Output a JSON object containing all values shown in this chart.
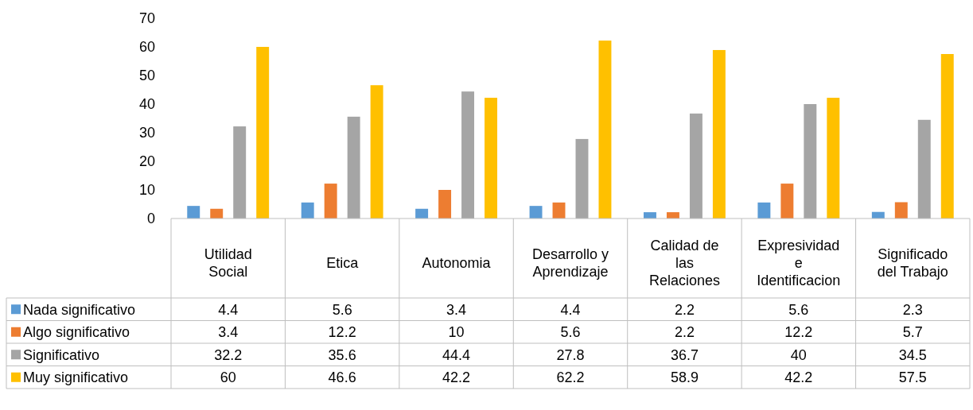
{
  "chart_data": {
    "type": "bar",
    "categories": [
      "Utilidad Social",
      "Etica",
      "Autonomia",
      "Desarrollo y Aprendizaje",
      "Calidad de las Relaciones",
      "Expresividad e Identificacion",
      "Significado del Trabajo"
    ],
    "series": [
      {
        "name": "Nada significativo",
        "color": "#5b9bd5",
        "values": [
          4.4,
          5.6,
          3.4,
          4.4,
          2.2,
          5.6,
          2.3
        ]
      },
      {
        "name": "Algo significativo",
        "color": "#ed7d31",
        "values": [
          3.4,
          12.2,
          10,
          5.6,
          2.2,
          12.2,
          5.7
        ]
      },
      {
        "name": "Significativo",
        "color": "#a5a5a5",
        "values": [
          32.2,
          35.6,
          44.4,
          27.8,
          36.7,
          40,
          34.5
        ]
      },
      {
        "name": "Muy significativo",
        "color": "#ffc000",
        "values": [
          60,
          46.6,
          42.2,
          62.2,
          58.9,
          42.2,
          57.5
        ]
      }
    ],
    "ylim": [
      0,
      70
    ],
    "yticks": [
      0,
      10,
      20,
      30,
      40,
      50,
      60,
      70
    ],
    "data_labels": true,
    "legend": "bottom",
    "grid": false
  }
}
